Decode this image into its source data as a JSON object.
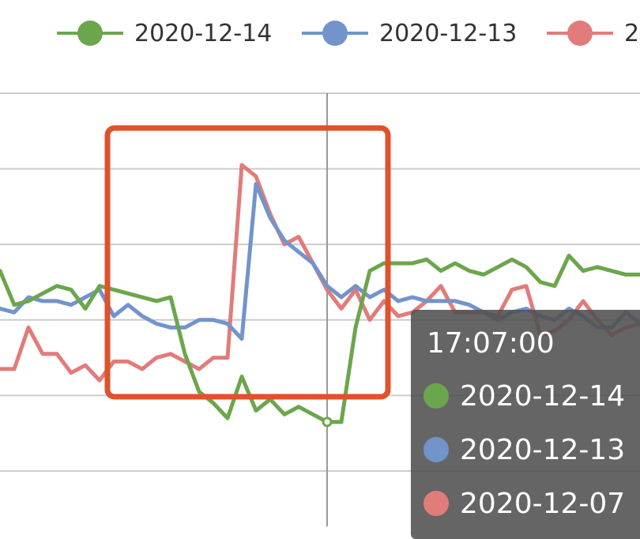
{
  "chart_data": {
    "type": "line",
    "xlabel": "",
    "ylabel": "",
    "grid": true,
    "legend_position": "top",
    "x_ticks_visible": false,
    "y_ticks_visible": false,
    "ylim": [
      0,
      100
    ],
    "tooltip": {
      "time": "17:07:00",
      "entries": [
        "2020-12-14",
        "2020-12-13",
        "2020-12-07"
      ]
    },
    "highlight_box": {
      "x_from": 8,
      "x_to": 27,
      "color": "#e0522b"
    },
    "crosshair_x": 23,
    "series": [
      {
        "name": "2020-12-14",
        "color": "#6ca64c",
        "values": [
          53,
          44,
          45,
          47,
          49,
          48,
          43,
          49,
          48,
          47,
          46,
          45,
          46,
          31,
          21,
          18,
          14,
          25,
          16,
          19,
          15,
          17,
          15,
          13,
          13,
          38,
          53,
          55,
          55,
          55,
          56,
          53,
          55,
          53,
          52,
          54,
          56,
          54,
          50,
          49,
          57,
          53,
          54,
          53,
          52,
          52
        ]
      },
      {
        "name": "2020-12-13",
        "color": "#7393cb",
        "values": [
          43,
          42,
          46,
          45,
          45,
          44,
          46,
          48,
          41,
          44,
          41,
          39,
          38,
          38,
          40,
          40,
          39,
          35,
          76,
          67,
          61,
          58,
          55,
          49,
          46,
          49,
          46,
          48,
          45,
          46,
          45,
          45,
          45,
          44,
          42,
          40,
          42,
          43,
          41,
          40,
          43,
          41,
          38,
          38,
          42,
          39
        ]
      },
      {
        "name": "2020-12-07",
        "color": "#e17c7a",
        "values": [
          27,
          27,
          38,
          31,
          31,
          26,
          28,
          24,
          29,
          29,
          27,
          30,
          31,
          29,
          27,
          30,
          30,
          81,
          78,
          68,
          60,
          62,
          55,
          48,
          43,
          48,
          40,
          45,
          41,
          42,
          45,
          49,
          42,
          42,
          42,
          41,
          48,
          49,
          36,
          37,
          40,
          45,
          40,
          36,
          38,
          39
        ]
      }
    ]
  }
}
